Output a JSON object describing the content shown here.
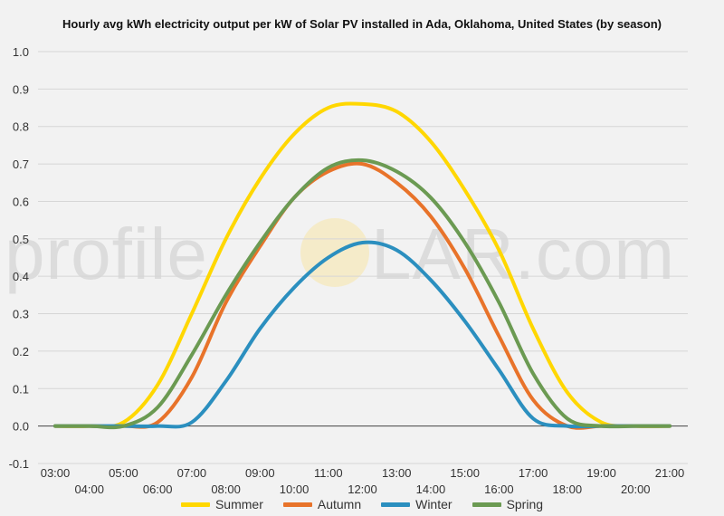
{
  "chart_data": {
    "type": "line",
    "title": "Hourly avg kWh electricity output per kW of Solar PV installed in Ada, Oklahoma, United States (by season)",
    "xlabel": "",
    "ylabel": "",
    "x": [
      "03:00",
      "04:00",
      "05:00",
      "06:00",
      "07:00",
      "08:00",
      "09:00",
      "10:00",
      "11:00",
      "12:00",
      "13:00",
      "14:00",
      "15:00",
      "16:00",
      "17:00",
      "18:00",
      "19:00",
      "20:00",
      "21:00"
    ],
    "ylim": [
      -0.1,
      1.0
    ],
    "yticks": [
      "-0.1",
      "0.0",
      "0.1",
      "0.2",
      "0.3",
      "0.4",
      "0.5",
      "0.6",
      "0.7",
      "0.8",
      "0.9",
      "1.0"
    ],
    "grid": true,
    "legend_position": "bottom",
    "series": [
      {
        "name": "Summer",
        "color": "#ffd700",
        "values": [
          0,
          0,
          0.01,
          0.11,
          0.3,
          0.5,
          0.66,
          0.78,
          0.85,
          0.86,
          0.84,
          0.76,
          0.63,
          0.47,
          0.26,
          0.09,
          0.01,
          0,
          0
        ]
      },
      {
        "name": "Autumn",
        "color": "#e8732a",
        "values": [
          0,
          0,
          0,
          0.01,
          0.13,
          0.33,
          0.48,
          0.61,
          0.68,
          0.7,
          0.65,
          0.56,
          0.42,
          0.24,
          0.07,
          0,
          0,
          0,
          0
        ]
      },
      {
        "name": "Winter",
        "color": "#2b8fbf",
        "values": [
          0,
          0,
          0,
          0,
          0.01,
          0.12,
          0.26,
          0.37,
          0.45,
          0.49,
          0.47,
          0.39,
          0.28,
          0.15,
          0.02,
          0,
          0,
          0,
          0
        ]
      },
      {
        "name": "Spring",
        "color": "#6b9a52",
        "values": [
          0,
          0,
          0,
          0.05,
          0.19,
          0.35,
          0.49,
          0.61,
          0.69,
          0.71,
          0.68,
          0.61,
          0.49,
          0.33,
          0.14,
          0.02,
          0,
          0,
          0
        ]
      }
    ]
  },
  "watermark": {
    "text_left": "profile",
    "text_right": "LAR.com"
  }
}
